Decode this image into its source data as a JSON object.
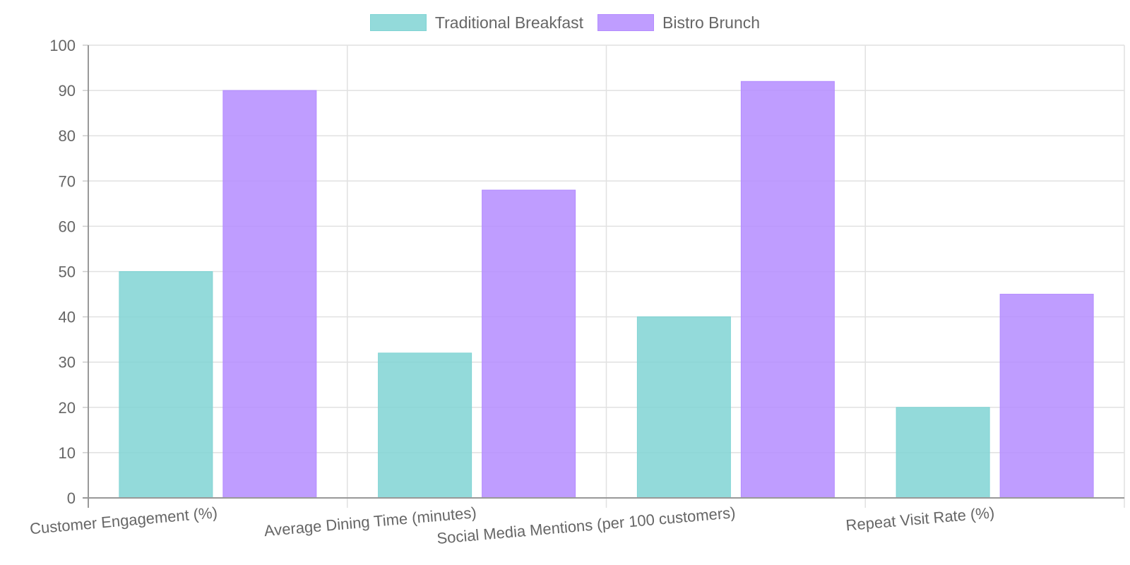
{
  "chart_data": {
    "type": "bar",
    "categories": [
      "Customer Engagement (%)",
      "Average Dining Time (minutes)",
      "Social Media Mentions (per 100 customers)",
      "Repeat Visit Rate (%)"
    ],
    "series": [
      {
        "name": "Traditional Breakfast",
        "values": [
          50,
          32,
          40,
          20
        ],
        "color": "#80d4d4"
      },
      {
        "name": "Bistro Brunch",
        "values": [
          90,
          68,
          92,
          45
        ],
        "color": "#b48cff"
      }
    ],
    "ylim": [
      0,
      100
    ],
    "yticks": [
      0,
      10,
      20,
      30,
      40,
      50,
      60,
      70,
      80,
      90,
      100
    ],
    "grid": true,
    "legend_position": "top-center"
  }
}
